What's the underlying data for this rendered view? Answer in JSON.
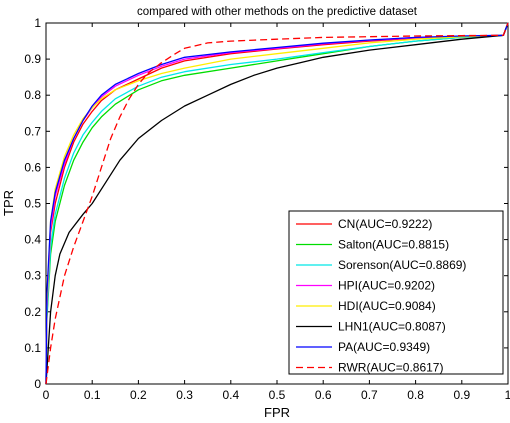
{
  "chart_data": {
    "type": "line",
    "title": "compared with other methods on the predictive dataset",
    "xlabel": "FPR",
    "ylabel": "TPR",
    "xlim": [
      0,
      1
    ],
    "ylim": [
      0,
      1
    ],
    "xticks": [
      "0",
      "0.1",
      "0.2",
      "0.3",
      "0.4",
      "0.5",
      "0.6",
      "0.7",
      "0.8",
      "0.9",
      "1"
    ],
    "yticks": [
      "0",
      "0.1",
      "0.2",
      "0.3",
      "0.4",
      "0.5",
      "0.6",
      "0.7",
      "0.8",
      "0.9",
      "1"
    ],
    "grid": false,
    "legend_position": "lower-right",
    "series": [
      {
        "name": "CN(AUC=0.9222)",
        "color": "#ff0000",
        "dash": false,
        "points": [
          [
            0,
            0
          ],
          [
            0.002,
            0.2
          ],
          [
            0.01,
            0.42
          ],
          [
            0.02,
            0.5
          ],
          [
            0.04,
            0.6
          ],
          [
            0.06,
            0.67
          ],
          [
            0.08,
            0.72
          ],
          [
            0.1,
            0.755
          ],
          [
            0.12,
            0.785
          ],
          [
            0.15,
            0.815
          ],
          [
            0.2,
            0.845
          ],
          [
            0.25,
            0.875
          ],
          [
            0.3,
            0.895
          ],
          [
            0.4,
            0.915
          ],
          [
            0.5,
            0.928
          ],
          [
            0.6,
            0.94
          ],
          [
            0.7,
            0.95
          ],
          [
            0.8,
            0.958
          ],
          [
            0.9,
            0.963
          ],
          [
            0.99,
            0.966
          ],
          [
            1.0,
            1.0
          ]
        ]
      },
      {
        "name": "Salton(AUC=0.8815)",
        "color": "#00dd00",
        "dash": false,
        "points": [
          [
            0,
            0
          ],
          [
            0.002,
            0.18
          ],
          [
            0.01,
            0.36
          ],
          [
            0.02,
            0.45
          ],
          [
            0.04,
            0.55
          ],
          [
            0.06,
            0.62
          ],
          [
            0.08,
            0.67
          ],
          [
            0.1,
            0.71
          ],
          [
            0.12,
            0.74
          ],
          [
            0.15,
            0.775
          ],
          [
            0.2,
            0.815
          ],
          [
            0.25,
            0.84
          ],
          [
            0.3,
            0.855
          ],
          [
            0.4,
            0.875
          ],
          [
            0.5,
            0.895
          ],
          [
            0.6,
            0.915
          ],
          [
            0.7,
            0.935
          ],
          [
            0.8,
            0.95
          ],
          [
            0.9,
            0.96
          ],
          [
            0.99,
            0.966
          ],
          [
            1.0,
            1.0
          ]
        ]
      },
      {
        "name": "Sorenson(AUC=0.8869)",
        "color": "#00e8e8",
        "dash": false,
        "points": [
          [
            0,
            0
          ],
          [
            0.002,
            0.19
          ],
          [
            0.01,
            0.38
          ],
          [
            0.02,
            0.47
          ],
          [
            0.04,
            0.57
          ],
          [
            0.06,
            0.64
          ],
          [
            0.08,
            0.69
          ],
          [
            0.1,
            0.725
          ],
          [
            0.12,
            0.755
          ],
          [
            0.15,
            0.79
          ],
          [
            0.2,
            0.825
          ],
          [
            0.25,
            0.85
          ],
          [
            0.3,
            0.865
          ],
          [
            0.4,
            0.885
          ],
          [
            0.5,
            0.9
          ],
          [
            0.6,
            0.918
          ],
          [
            0.7,
            0.935
          ],
          [
            0.8,
            0.95
          ],
          [
            0.9,
            0.96
          ],
          [
            0.99,
            0.966
          ],
          [
            1.0,
            1.0
          ]
        ]
      },
      {
        "name": "HPI(AUC=0.9202)",
        "color": "#ff00ff",
        "dash": false,
        "points": [
          [
            0,
            0
          ],
          [
            0.002,
            0.21
          ],
          [
            0.01,
            0.43
          ],
          [
            0.02,
            0.52
          ],
          [
            0.04,
            0.61
          ],
          [
            0.06,
            0.68
          ],
          [
            0.08,
            0.73
          ],
          [
            0.1,
            0.765
          ],
          [
            0.12,
            0.795
          ],
          [
            0.15,
            0.825
          ],
          [
            0.2,
            0.855
          ],
          [
            0.25,
            0.88
          ],
          [
            0.3,
            0.9
          ],
          [
            0.4,
            0.918
          ],
          [
            0.5,
            0.93
          ],
          [
            0.6,
            0.942
          ],
          [
            0.7,
            0.952
          ],
          [
            0.8,
            0.959
          ],
          [
            0.9,
            0.963
          ],
          [
            0.99,
            0.966
          ],
          [
            1.0,
            1.0
          ]
        ]
      },
      {
        "name": "HDI(AUC=0.9084)",
        "color": "#ffee00",
        "dash": false,
        "points": [
          [
            0,
            0
          ],
          [
            0.002,
            0.22
          ],
          [
            0.01,
            0.45
          ],
          [
            0.02,
            0.54
          ],
          [
            0.04,
            0.63
          ],
          [
            0.06,
            0.69
          ],
          [
            0.08,
            0.735
          ],
          [
            0.1,
            0.765
          ],
          [
            0.12,
            0.79
          ],
          [
            0.15,
            0.815
          ],
          [
            0.2,
            0.84
          ],
          [
            0.25,
            0.86
          ],
          [
            0.3,
            0.875
          ],
          [
            0.4,
            0.9
          ],
          [
            0.5,
            0.915
          ],
          [
            0.6,
            0.93
          ],
          [
            0.7,
            0.945
          ],
          [
            0.8,
            0.955
          ],
          [
            0.9,
            0.962
          ],
          [
            0.99,
            0.966
          ],
          [
            1.0,
            1.0
          ]
        ]
      },
      {
        "name": "LHN1(AUC=0.8087)",
        "color": "#000000",
        "dash": false,
        "points": [
          [
            0,
            0
          ],
          [
            0.005,
            0.1
          ],
          [
            0.01,
            0.2
          ],
          [
            0.02,
            0.3
          ],
          [
            0.03,
            0.36
          ],
          [
            0.05,
            0.42
          ],
          [
            0.08,
            0.47
          ],
          [
            0.1,
            0.5
          ],
          [
            0.13,
            0.56
          ],
          [
            0.16,
            0.62
          ],
          [
            0.2,
            0.68
          ],
          [
            0.25,
            0.73
          ],
          [
            0.3,
            0.77
          ],
          [
            0.35,
            0.8
          ],
          [
            0.4,
            0.83
          ],
          [
            0.45,
            0.855
          ],
          [
            0.5,
            0.875
          ],
          [
            0.55,
            0.89
          ],
          [
            0.6,
            0.905
          ],
          [
            0.7,
            0.925
          ],
          [
            0.8,
            0.94
          ],
          [
            0.9,
            0.955
          ],
          [
            0.99,
            0.966
          ],
          [
            1.0,
            1.0
          ]
        ]
      },
      {
        "name": "PA(AUC=0.9349)",
        "color": "#0000ff",
        "dash": false,
        "points": [
          [
            0,
            0
          ],
          [
            0.002,
            0.25
          ],
          [
            0.01,
            0.45
          ],
          [
            0.02,
            0.53
          ],
          [
            0.04,
            0.62
          ],
          [
            0.06,
            0.68
          ],
          [
            0.08,
            0.73
          ],
          [
            0.1,
            0.77
          ],
          [
            0.12,
            0.8
          ],
          [
            0.15,
            0.83
          ],
          [
            0.2,
            0.86
          ],
          [
            0.25,
            0.885
          ],
          [
            0.3,
            0.905
          ],
          [
            0.4,
            0.92
          ],
          [
            0.5,
            0.932
          ],
          [
            0.6,
            0.944
          ],
          [
            0.7,
            0.953
          ],
          [
            0.8,
            0.96
          ],
          [
            0.9,
            0.964
          ],
          [
            0.99,
            0.966
          ],
          [
            1.0,
            1.0
          ]
        ]
      },
      {
        "name": "RWR(AUC=0.8617)",
        "color": "#ff0000",
        "dash": true,
        "points": [
          [
            0,
            0
          ],
          [
            0.01,
            0.1
          ],
          [
            0.02,
            0.18
          ],
          [
            0.04,
            0.3
          ],
          [
            0.06,
            0.38
          ],
          [
            0.08,
            0.45
          ],
          [
            0.1,
            0.52
          ],
          [
            0.12,
            0.6
          ],
          [
            0.14,
            0.68
          ],
          [
            0.16,
            0.74
          ],
          [
            0.18,
            0.79
          ],
          [
            0.2,
            0.83
          ],
          [
            0.22,
            0.86
          ],
          [
            0.25,
            0.89
          ],
          [
            0.28,
            0.915
          ],
          [
            0.3,
            0.93
          ],
          [
            0.35,
            0.945
          ],
          [
            0.4,
            0.95
          ],
          [
            0.5,
            0.955
          ],
          [
            0.6,
            0.96
          ],
          [
            0.7,
            0.962
          ],
          [
            0.8,
            0.964
          ],
          [
            0.9,
            0.965
          ],
          [
            0.99,
            0.966
          ],
          [
            1.0,
            1.0
          ]
        ]
      }
    ]
  }
}
